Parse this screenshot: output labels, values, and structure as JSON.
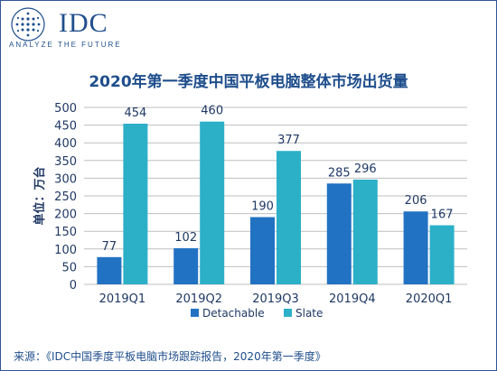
{
  "logo": {
    "wordmark": "IDC",
    "tagline": "ANALYZE THE FUTURE",
    "color": "#1f4e8c"
  },
  "source": "来源：《IDC中国季度平板电脑市场跟踪报告，2020年第一季度》",
  "chart_data": {
    "type": "bar",
    "title": "2020年第一季度中国平板电脑整体市场出货量",
    "xlabel": "",
    "ylabel": "单位：万台",
    "categories": [
      "2019Q1",
      "2019Q2",
      "2019Q3",
      "2019Q4",
      "2020Q1"
    ],
    "series": [
      {
        "name": "Detachable",
        "values": [
          77,
          102,
          190,
          285,
          206
        ],
        "color": "#2272c3"
      },
      {
        "name": "Slate",
        "values": [
          454,
          460,
          377,
          296,
          167
        ],
        "color": "#2bb0c8"
      }
    ],
    "ylim": [
      0,
      500
    ],
    "yticks": [
      0,
      50,
      100,
      150,
      200,
      250,
      300,
      350,
      400,
      450,
      500
    ],
    "grid": true,
    "legend_position": "bottom",
    "colors": {
      "title": "#1f4e8c",
      "text": "#1f3864",
      "grid": "#bfbfbf"
    }
  }
}
